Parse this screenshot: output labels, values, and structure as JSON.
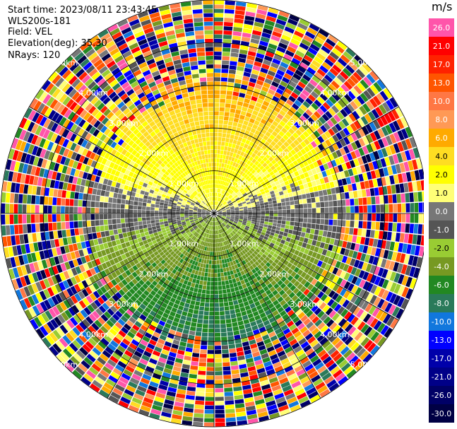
{
  "header": {
    "start_time": "Start time: 2023/08/11 23:43:45",
    "instrument": "WLS200s-181",
    "field": "Field: VEL",
    "elevation": "Elevation(deg): 35.30",
    "nrays": "NRays: 120"
  },
  "colorbar": {
    "unit": "m/s",
    "levels": [
      {
        "label": "26.0",
        "color": "#ff55aa",
        "text_color": "#ffffff"
      },
      {
        "label": "21.0",
        "color": "#ff0000",
        "text_color": "#ffffff"
      },
      {
        "label": "17.0",
        "color": "#ff2200",
        "text_color": "#ffffff"
      },
      {
        "label": "13.0",
        "color": "#ff5500",
        "text_color": "#ffffff"
      },
      {
        "label": "10.0",
        "color": "#ff7744",
        "text_color": "#ffffff"
      },
      {
        "label": "8.0",
        "color": "#ff9955",
        "text_color": "#ffffff"
      },
      {
        "label": "6.0",
        "color": "#ffaa00",
        "text_color": "#ffffff"
      },
      {
        "label": "4.0",
        "color": "#ffdd22",
        "text_color": "#000000"
      },
      {
        "label": "2.0",
        "color": "#ffff00",
        "text_color": "#000000"
      },
      {
        "label": "1.0",
        "color": "#ffff77",
        "text_color": "#000000"
      },
      {
        "label": "0.0",
        "color": "#777777",
        "text_color": "#ffffff"
      },
      {
        "label": "-1.0",
        "color": "#555555",
        "text_color": "#ffffff"
      },
      {
        "label": "-2.0",
        "color": "#99cc33",
        "text_color": "#000000"
      },
      {
        "label": "-4.0",
        "color": "#779922",
        "text_color": "#ffffff"
      },
      {
        "label": "-6.0",
        "color": "#228822",
        "text_color": "#ffffff"
      },
      {
        "label": "-8.0",
        "color": "#2a7a5a",
        "text_color": "#ffffff"
      },
      {
        "label": "-10.0",
        "color": "#1177dd",
        "text_color": "#ffffff"
      },
      {
        "label": "-13.0",
        "color": "#0000ff",
        "text_color": "#ffffff"
      },
      {
        "label": "-17.0",
        "color": "#0000aa",
        "text_color": "#ffffff"
      },
      {
        "label": "-21.0",
        "color": "#000088",
        "text_color": "#ffffff"
      },
      {
        "label": "-26.0",
        "color": "#000066",
        "text_color": "#ffffff"
      },
      {
        "label": "-30.0",
        "color": "#000044",
        "text_color": "#ffffff"
      }
    ]
  },
  "chart_data": {
    "type": "heatmap",
    "projection": "polar (PPI)",
    "field": "VEL",
    "unit": "m/s",
    "nrays": 120,
    "max_range_km": 5.0,
    "range_rings_km": [
      1.0,
      2.0,
      3.0,
      4.0,
      5.0
    ],
    "range_ring_labels": [
      "1.00km",
      "2.00km",
      "3.00km",
      "4.00km",
      "5.00km"
    ],
    "spoke_angles_deg": [
      0,
      30,
      60,
      90,
      120,
      150,
      180,
      210,
      240,
      270,
      300,
      330
    ],
    "velocity_pattern": {
      "north_sector": "positive 2–8 m/s (orange/yellow)",
      "south_sector": "negative 2–6 m/s (green)",
      "east_west_axis": "~0 m/s (gray)",
      "beyond_3km": "noisy, full-scale random values"
    },
    "color_scale": [
      26.0,
      21.0,
      17.0,
      13.0,
      10.0,
      8.0,
      6.0,
      4.0,
      2.0,
      1.0,
      0.0,
      -1.0,
      -2.0,
      -4.0,
      -6.0,
      -8.0,
      -10.0,
      -13.0,
      -17.0,
      -21.0,
      -26.0,
      -30.0
    ]
  }
}
